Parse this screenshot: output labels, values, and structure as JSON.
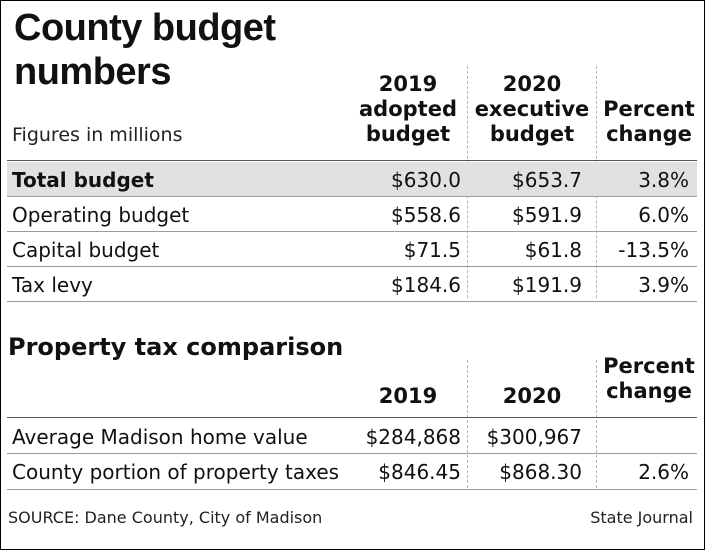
{
  "header": {
    "title": "County budget numbers",
    "subtitle": "Figures in millions"
  },
  "budget_table": {
    "columns": [
      "2019 adopted budget",
      "2020 executive budget",
      "Percent change"
    ],
    "rows": [
      {
        "label": "Total budget",
        "v2019": "$630.0",
        "v2020": "$653.7",
        "pct": "3.8%",
        "highlight": true
      },
      {
        "label": "Operating budget",
        "v2019": "$558.6",
        "v2020": "$591.9",
        "pct": "6.0%"
      },
      {
        "label": "Capital budget",
        "v2019": "$71.5",
        "v2020": "$61.8",
        "pct": "-13.5%"
      },
      {
        "label": "Tax levy",
        "v2019": "$184.6",
        "v2020": "$191.9",
        "pct": "3.9%"
      }
    ]
  },
  "property_tax": {
    "title": "Property tax comparison",
    "columns": [
      "2019",
      "2020",
      "Percent change"
    ],
    "rows": [
      {
        "label": "Average Madison home value",
        "v2019": "$284,868",
        "v2020": "$300,967",
        "pct": ""
      },
      {
        "label": "County portion of property taxes",
        "v2019": "$846.45",
        "v2020": "$868.30",
        "pct": "2.6%"
      }
    ]
  },
  "footer": {
    "source": "SOURCE: Dane County, City of Madison",
    "credit": "State Journal"
  },
  "colors": {
    "highlight_row": "#e1e1e1",
    "text": "#111111"
  }
}
